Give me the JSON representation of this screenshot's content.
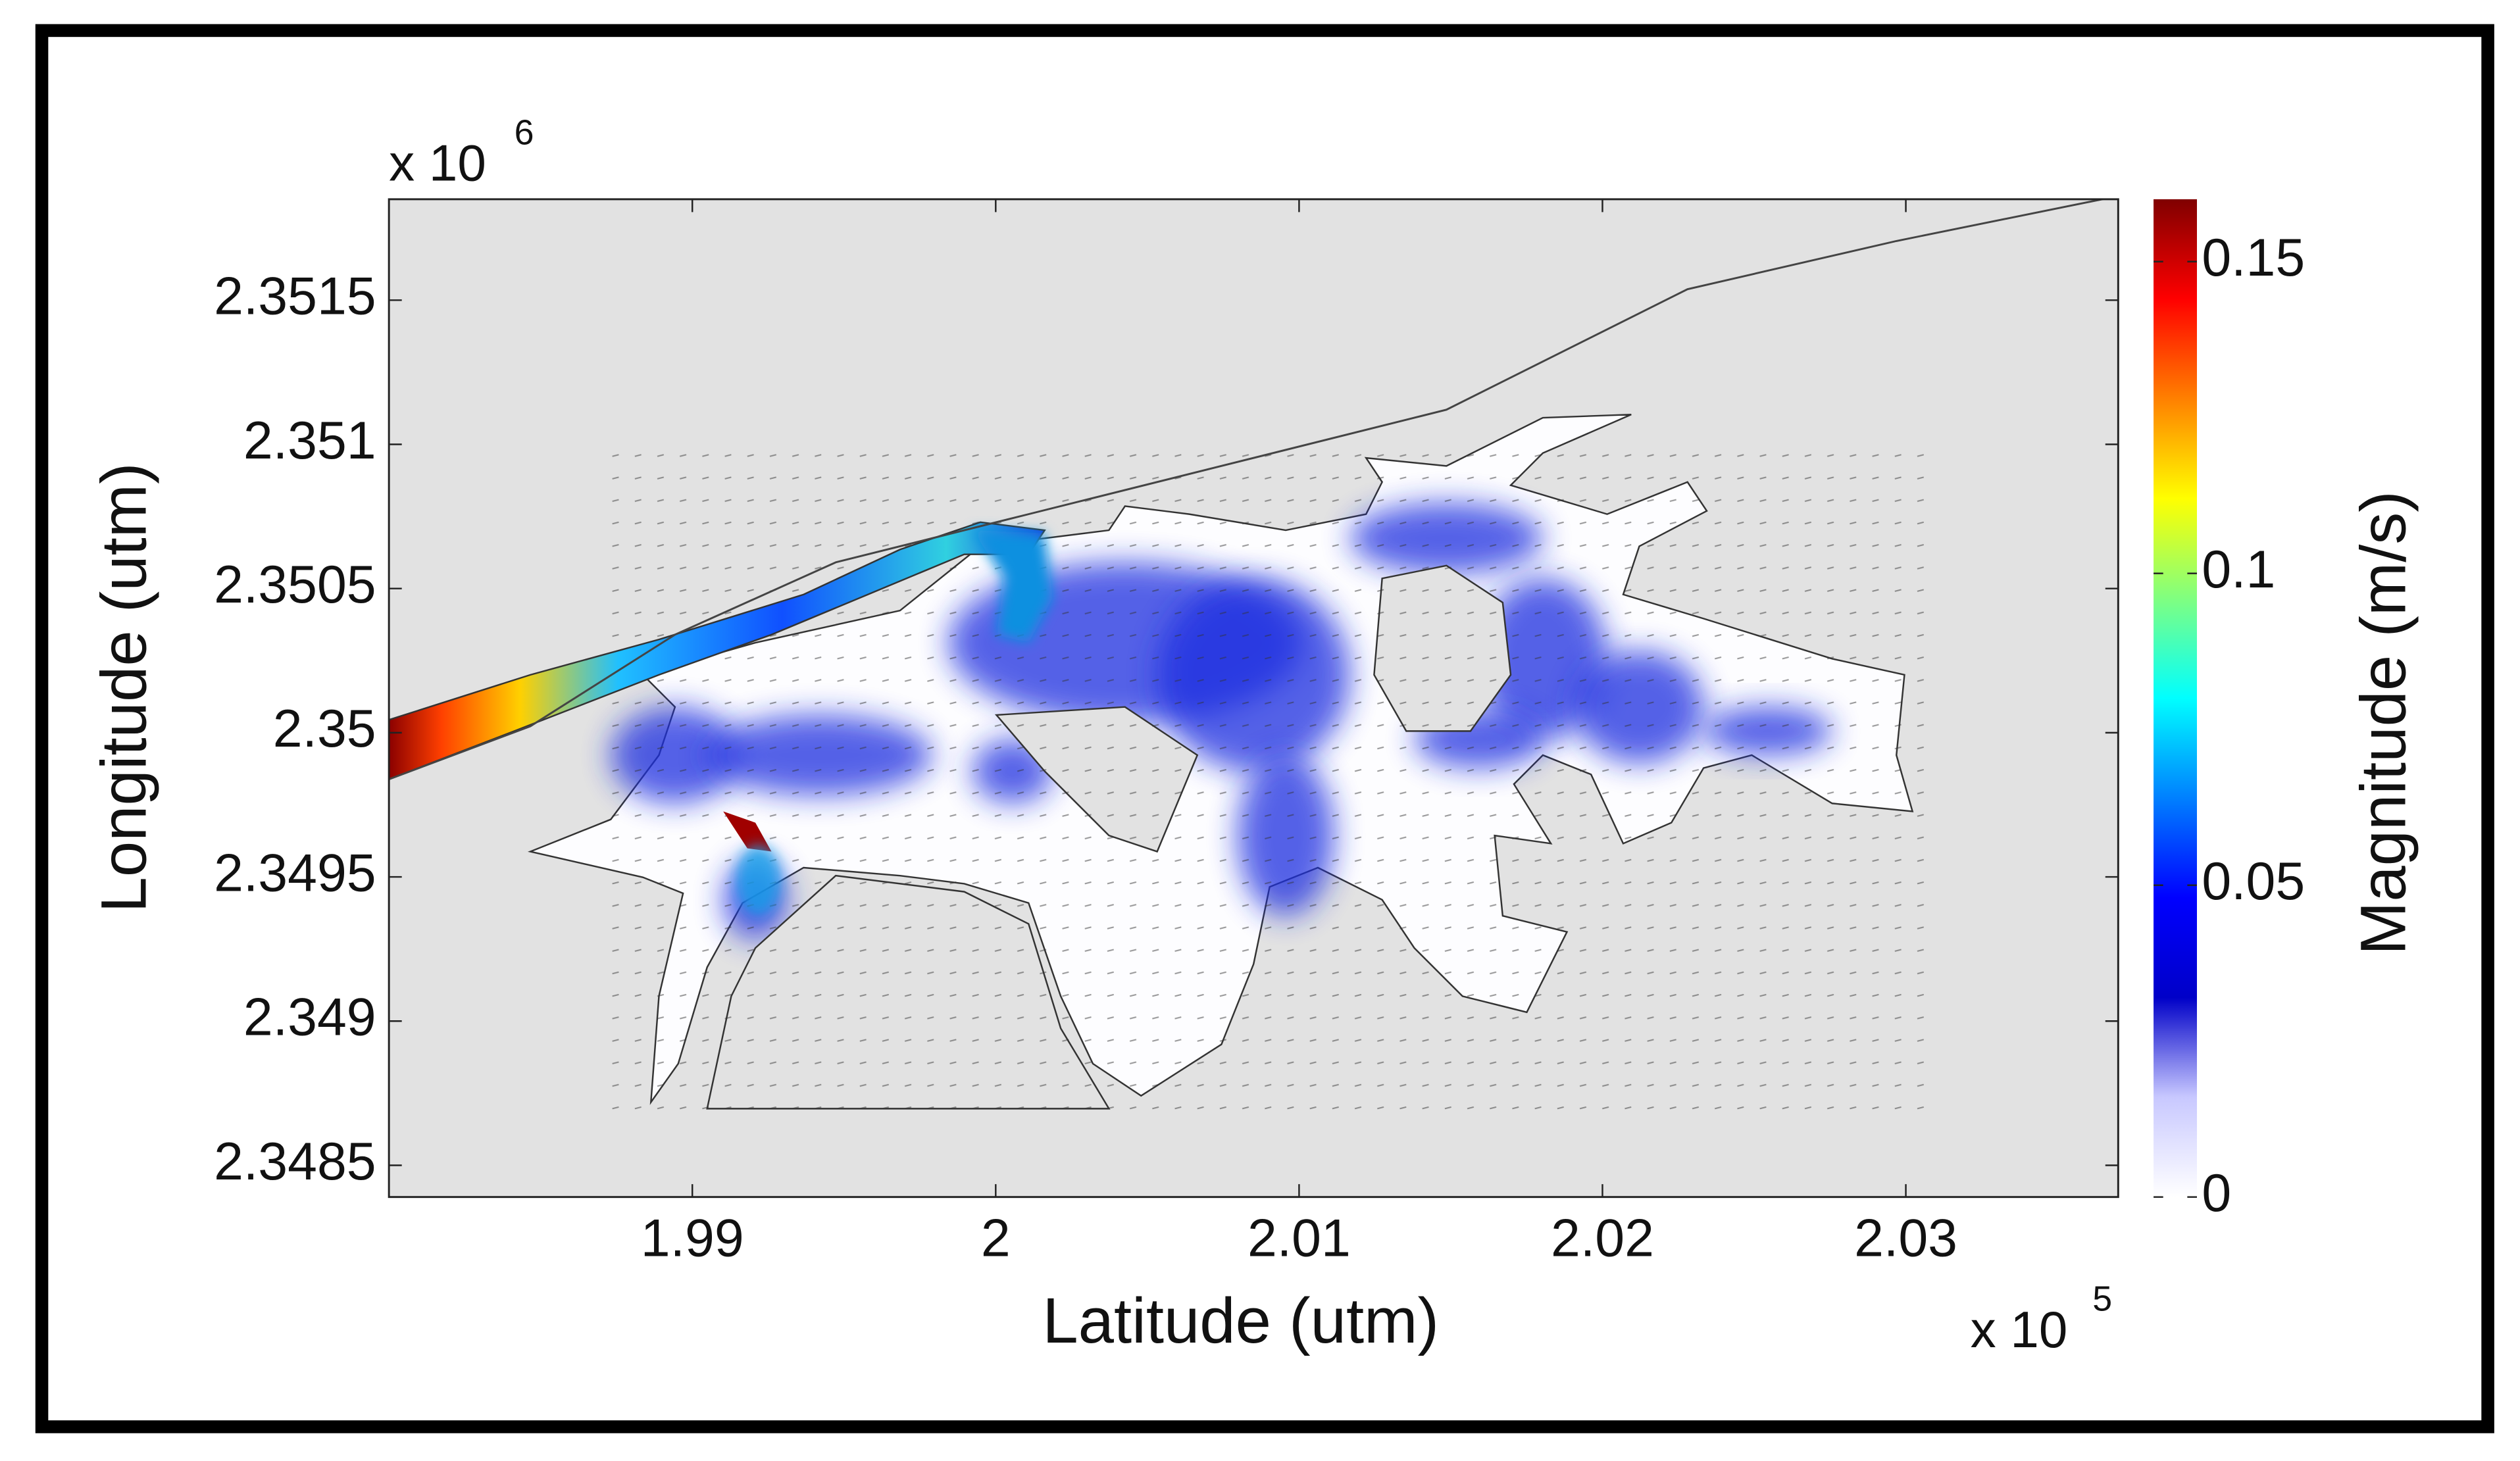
{
  "chart_data": {
    "type": "flow_field",
    "xlabel": "Latitude (utm)",
    "ylabel": "Longitude (utm)",
    "x_multiplier": {
      "base": "x 10",
      "exponent": "5"
    },
    "y_multiplier": {
      "base": "x 10",
      "exponent": "6"
    },
    "xlim": [
      1.98,
      2.037
    ],
    "xticks": [
      1.99,
      2,
      2.01,
      2.02,
      2.03
    ],
    "ylim": [
      2.34839,
      2.35185
    ],
    "yticks": [
      2.3485,
      2.349,
      2.3495,
      2.35,
      2.3505,
      2.351,
      2.3515
    ],
    "colorbar": {
      "label": "Magnitude (m/s)",
      "lim": [
        0,
        0.16
      ],
      "ticks": [
        0,
        0.05,
        0.1,
        0.15
      ],
      "colormap": "jet"
    },
    "background": "#e2e2e2"
  }
}
